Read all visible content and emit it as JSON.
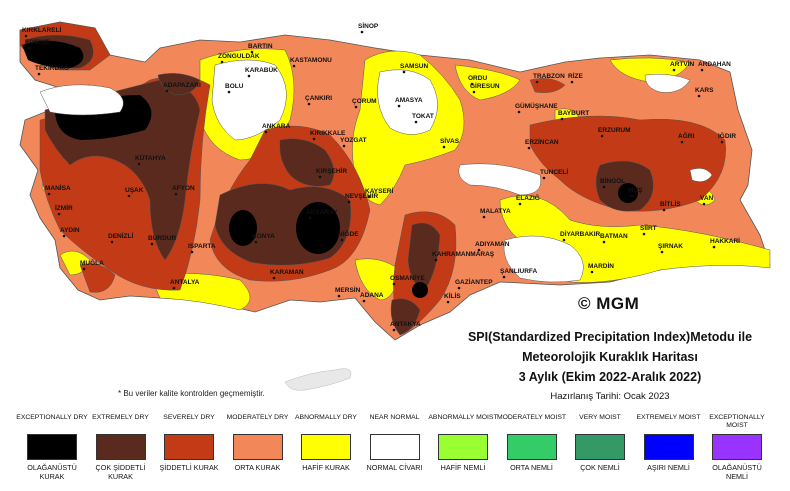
{
  "cities": [
    {
      "name": "KIRKLARELİ"
    },
    {
      "name": "EDİRNE"
    },
    {
      "name": "TEKİRDAĞ"
    },
    {
      "name": "SİNOP"
    },
    {
      "name": "BARTIN"
    },
    {
      "name": "ZONGULDAK"
    },
    {
      "name": "KASTAMONU"
    },
    {
      "name": "KARABÜK"
    },
    {
      "name": "BOLU"
    },
    {
      "name": "ÇANKIRI"
    },
    {
      "name": "SAMSUN"
    },
    {
      "name": "ORDU"
    },
    {
      "name": "GİRESUN"
    },
    {
      "name": "TRABZON"
    },
    {
      "name": "RİZE"
    },
    {
      "name": "ARTVİN"
    },
    {
      "name": "ARDAHAN"
    },
    {
      "name": "KARS"
    },
    {
      "name": "ANKARA"
    },
    {
      "name": "AMASYA"
    },
    {
      "name": "TOKAT"
    },
    {
      "name": "ÇORUM"
    },
    {
      "name": "GÜMÜŞHANE"
    },
    {
      "name": "BAYBURT"
    },
    {
      "name": "ERZURUM"
    },
    {
      "name": "AĞRI"
    },
    {
      "name": "IĞDIR"
    },
    {
      "name": "ADAPAZARI"
    },
    {
      "name": "KIRIKKALE"
    },
    {
      "name": "YOZGAT"
    },
    {
      "name": "SİVAS"
    },
    {
      "name": "ERZİNCAN"
    },
    {
      "name": "TUNCELİ"
    },
    {
      "name": "BİNGÖL"
    },
    {
      "name": "MUŞ"
    },
    {
      "name": "BİTLİS"
    },
    {
      "name": "VAN"
    },
    {
      "name": "KÜTAHYA"
    },
    {
      "name": "KIRŞEHİR"
    },
    {
      "name": "NEVŞEHİR"
    },
    {
      "name": "KAYSERİ"
    },
    {
      "name": "ELAZIĞ"
    },
    {
      "name": "MALATYA"
    },
    {
      "name": "MANİSA"
    },
    {
      "name": "UŞAK"
    },
    {
      "name": "AFYON"
    },
    {
      "name": "İZMİR"
    },
    {
      "name": "AYDIN"
    },
    {
      "name": "DENİZLİ"
    },
    {
      "name": "BURDUR"
    },
    {
      "name": "ISPARTA"
    },
    {
      "name": "KONYA"
    },
    {
      "name": "AKSARAY"
    },
    {
      "name": "NİĞDE"
    },
    {
      "name": "KARAMAN"
    },
    {
      "name": "ADIYAMAN"
    },
    {
      "name": "DİYARBAKIR"
    },
    {
      "name": "BATMAN"
    },
    {
      "name": "SİİRT"
    },
    {
      "name": "ŞIRNAK"
    },
    {
      "name": "HAKKARİ"
    },
    {
      "name": "KAHRAMANMARAŞ"
    },
    {
      "name": "ŞANLIURFA"
    },
    {
      "name": "MARDİN"
    },
    {
      "name": "MUĞLA"
    },
    {
      "name": "ANTALYA"
    },
    {
      "name": "MERSİN"
    },
    {
      "name": "ADANA"
    },
    {
      "name": "OSMANİYE"
    },
    {
      "name": "GAZİANTEP"
    },
    {
      "name": "KİLİS"
    },
    {
      "name": "ANTAKYA"
    }
  ],
  "title": {
    "line1": "SPI(Standardized Precipitation Index)Metodu ile",
    "line2": "Meteorolojik Kuraklık Haritası",
    "line3": "3 Aylık (Ekim 2022-Aralık 2022)",
    "date": "Hazırlanış Tarihi: Ocak 2023"
  },
  "logo": "© MGM",
  "note": "* Bu veriler kalite kontrolden geçmemiştir.",
  "legend": [
    {
      "en": "EXCEPTIONALLY DRY",
      "tr": "OLAĞANÜSTÜ KURAK",
      "color": "#000000"
    },
    {
      "en": "EXTREMELY DRY",
      "tr": "ÇOK ŞİDDETLİ KURAK",
      "color": "#5a2a1e"
    },
    {
      "en": "SEVERELY DRY",
      "tr": "ŞİDDETLİ KURAK",
      "color": "#c33a16"
    },
    {
      "en": "MODERATELY DRY",
      "tr": "ORTA KURAK",
      "color": "#f2885a"
    },
    {
      "en": "ABNORMALLY DRY",
      "tr": "HAFİF KURAK",
      "color": "#ffff00"
    },
    {
      "en": "NEAR NORMAL",
      "tr": "NORMAL CİVARI",
      "color": "#ffffff"
    },
    {
      "en": "ABNORMALLY MOIST",
      "tr": "HAFİF NEMLİ",
      "color": "#99ff33"
    },
    {
      "en": "MODERATELY MOIST",
      "tr": "ORTA NEMLİ",
      "color": "#33cc66"
    },
    {
      "en": "VERY MOIST",
      "tr": "ÇOK NEMLİ",
      "color": "#339966"
    },
    {
      "en": "EXTREMELY MOIST",
      "tr": "AŞIRI NEMLİ",
      "color": "#0000ff"
    },
    {
      "en": "EXCEPTIONALLY MOIST",
      "tr": "OLAĞANÜSTÜ NEMLİ",
      "color": "#9933ff"
    }
  ]
}
